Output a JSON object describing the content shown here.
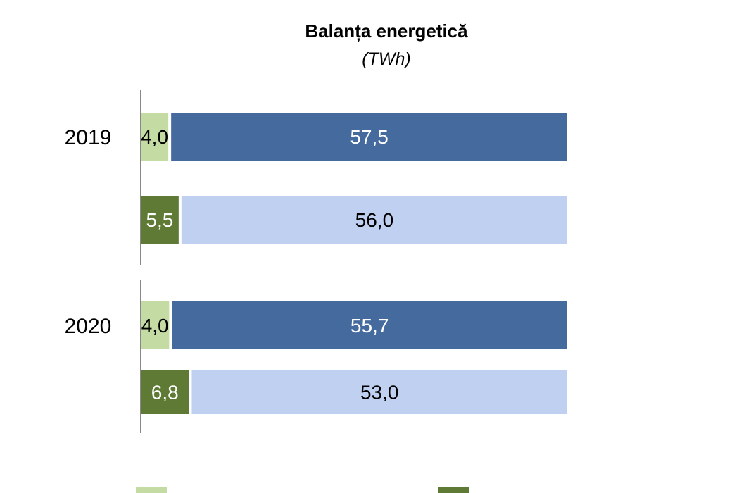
{
  "chart_data": {
    "type": "bar",
    "orientation": "horizontal",
    "stacked": true,
    "title": "Balanța energetică",
    "subtitle": "(TWh)",
    "categories": [
      "2019",
      "2020"
    ],
    "rows": [
      {
        "category": "2019",
        "segments": [
          {
            "value": 4.0,
            "label": "4,0",
            "color": "#c4dca4",
            "label_color": "#000000"
          },
          {
            "value": 57.5,
            "label": "57,5",
            "color": "#456a9e",
            "label_color": "#ffffff"
          }
        ]
      },
      {
        "category": "",
        "segments": [
          {
            "value": 5.5,
            "label": "5,5",
            "color": "#5e7a34",
            "label_color": "#ffffff"
          },
          {
            "value": 56.0,
            "label": "56,0",
            "color": "#bfd0f0",
            "label_color": "#000000"
          }
        ]
      },
      {
        "category": "2020",
        "segments": [
          {
            "value": 4.0,
            "label": "4,0",
            "color": "#c4dca4",
            "label_color": "#000000"
          },
          {
            "value": 55.7,
            "label": "55,7",
            "color": "#456a9e",
            "label_color": "#ffffff"
          }
        ]
      },
      {
        "category": "",
        "segments": [
          {
            "value": 6.8,
            "label": "6,8",
            "color": "#5e7a34",
            "label_color": "#ffffff"
          },
          {
            "value": 53.0,
            "label": "53,0",
            "color": "#bfd0f0",
            "label_color": "#000000"
          }
        ]
      }
    ],
    "legend_colors": [
      "#c4dca4",
      "#5e7a34"
    ],
    "legend_placement": "bottom",
    "grid": false
  }
}
